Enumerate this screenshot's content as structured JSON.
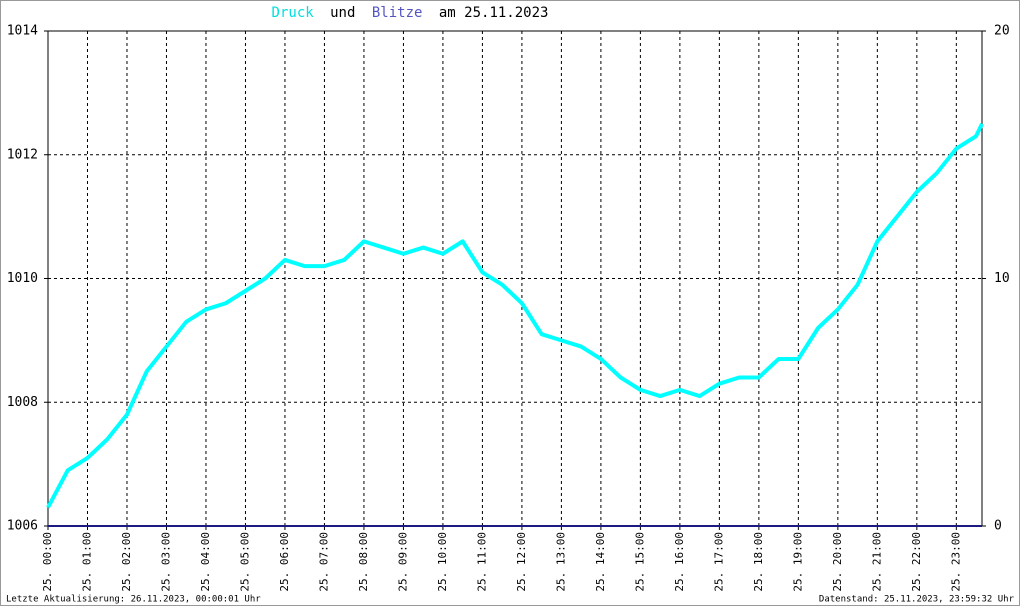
{
  "chart_data": {
    "type": "line",
    "title_parts": [
      "und",
      "am 25.11.2023"
    ],
    "x_unit": "hours",
    "series": [
      {
        "name": "Druck",
        "color": "#00ffff",
        "x": [
          0,
          0.5,
          1,
          1.5,
          2,
          2.5,
          3,
          3.5,
          4,
          4.5,
          5,
          5.5,
          6,
          6.5,
          7,
          7.5,
          8,
          8.5,
          9,
          9.5,
          10,
          10.5,
          11,
          11.5,
          12,
          12.5,
          13,
          13.5,
          14,
          14.5,
          15,
          15.5,
          16,
          16.5,
          17,
          17.5,
          18,
          18.5,
          19,
          19.5,
          20,
          20.5,
          21,
          21.5,
          22,
          22.5,
          23,
          23.5,
          23.65
        ],
        "values": [
          1006.3,
          1006.9,
          1007.1,
          1007.4,
          1007.8,
          1008.5,
          1008.9,
          1009.3,
          1009.5,
          1009.6,
          1009.8,
          1010.0,
          1010.3,
          1010.2,
          1010.2,
          1010.3,
          1010.6,
          1010.5,
          1010.4,
          1010.5,
          1010.4,
          1010.6,
          1010.1,
          1009.9,
          1009.6,
          1009.1,
          1009.0,
          1008.9,
          1008.7,
          1008.4,
          1008.2,
          1008.1,
          1008.2,
          1008.1,
          1008.3,
          1008.4,
          1008.4,
          1008.7,
          1008.7,
          1009.2,
          1009.5,
          1009.9,
          1010.6,
          1011.0,
          1011.4,
          1011.7,
          1012.1,
          1012.3,
          1012.5
        ]
      },
      {
        "name": "Blitze",
        "color": "#1a1a80",
        "axis": "y2",
        "x": [
          0,
          23.65
        ],
        "values": [
          0,
          0
        ]
      }
    ],
    "xlim": [
      0,
      23.65
    ],
    "xticks": [
      {
        "value": 0,
        "label": "25. 00:00"
      },
      {
        "value": 1,
        "label": "25. 01:00"
      },
      {
        "value": 2,
        "label": "25. 02:00"
      },
      {
        "value": 3,
        "label": "25. 03:00"
      },
      {
        "value": 4,
        "label": "25. 04:00"
      },
      {
        "value": 5,
        "label": "25. 05:00"
      },
      {
        "value": 6,
        "label": "25. 06:00"
      },
      {
        "value": 7,
        "label": "25. 07:00"
      },
      {
        "value": 8,
        "label": "25. 08:00"
      },
      {
        "value": 9,
        "label": "25. 09:00"
      },
      {
        "value": 10,
        "label": "25. 10:00"
      },
      {
        "value": 11,
        "label": "25. 11:00"
      },
      {
        "value": 12,
        "label": "25. 12:00"
      },
      {
        "value": 13,
        "label": "25. 13:00"
      },
      {
        "value": 14,
        "label": "25. 14:00"
      },
      {
        "value": 15,
        "label": "25. 15:00"
      },
      {
        "value": 16,
        "label": "25. 16:00"
      },
      {
        "value": 17,
        "label": "25. 17:00"
      },
      {
        "value": 18,
        "label": "25. 18:00"
      },
      {
        "value": 19,
        "label": "25. 19:00"
      },
      {
        "value": 20,
        "label": "25. 20:00"
      },
      {
        "value": 21,
        "label": "25. 21:00"
      },
      {
        "value": 22,
        "label": "25. 22:00"
      },
      {
        "value": 23,
        "label": "25. 23:00"
      }
    ],
    "ylim": [
      1006,
      1014
    ],
    "yticks": [
      1006,
      1008,
      1010,
      1012,
      1014
    ],
    "y2lim": [
      0,
      20
    ],
    "y2ticks": [
      0,
      10,
      20
    ],
    "grid": true,
    "footer_left": "Letzte Aktualisierung: 26.11.2023, 00:00:01 Uhr",
    "footer_right": "Datenstand: 25.11.2023, 23:59:32 Uhr"
  }
}
